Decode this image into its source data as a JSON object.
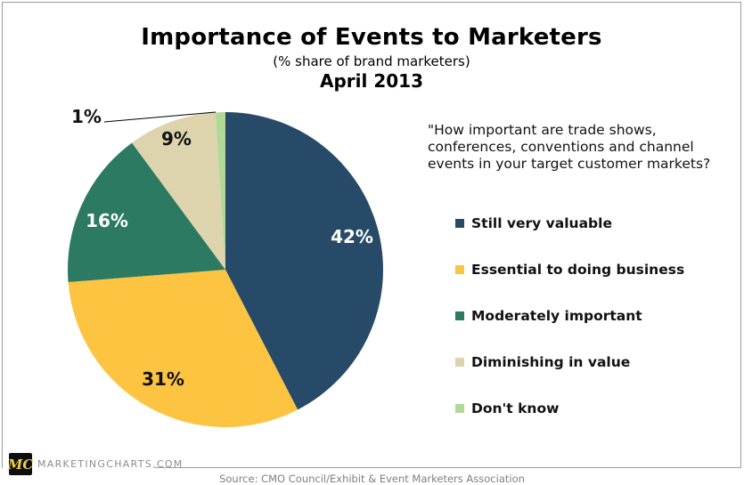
{
  "header": {
    "title": "Importance of Events to Marketers",
    "subtitle": "(% share of brand marketers)",
    "date": "April 2013"
  },
  "question": {
    "lines": [
      "\"How important are trade shows,",
      "conferences, conventions and channel",
      "events in your target customer markets?"
    ]
  },
  "chart_data": {
    "type": "pie",
    "title": "Importance of Events to Marketers",
    "subtitle": "(% share of brand marketers)",
    "period": "April 2013",
    "unit": "percent",
    "direction": "clockwise",
    "start_angle_deg": 0,
    "legend_position": "right",
    "slices": [
      {
        "label": "Still very valuable",
        "value": 42,
        "color": "#284a69",
        "label_color": "#ffffff"
      },
      {
        "label": "Essential to doing business",
        "value": 31,
        "color": "#fcc440",
        "label_color": "#111111"
      },
      {
        "label": "Moderately important",
        "value": 16,
        "color": "#2b7a61",
        "label_color": "#ffffff"
      },
      {
        "label": "Diminishing in value",
        "value": 9,
        "color": "#ddd3ad",
        "label_color": "#111111"
      },
      {
        "label": "Don't know",
        "value": 1,
        "color": "#b2d898",
        "label_color": "#111111"
      }
    ]
  },
  "footer": {
    "logo_text": "MC",
    "brand": "MARKETINGCHARTS.COM",
    "source": "Source: CMO Council/Exhibit & Event Marketers Association"
  },
  "colors": {
    "border": "#9c9ca0",
    "source_text": "#7f7f7f",
    "logo_bg": "#0e0e0e",
    "logo_text": "#f2cf3e"
  }
}
